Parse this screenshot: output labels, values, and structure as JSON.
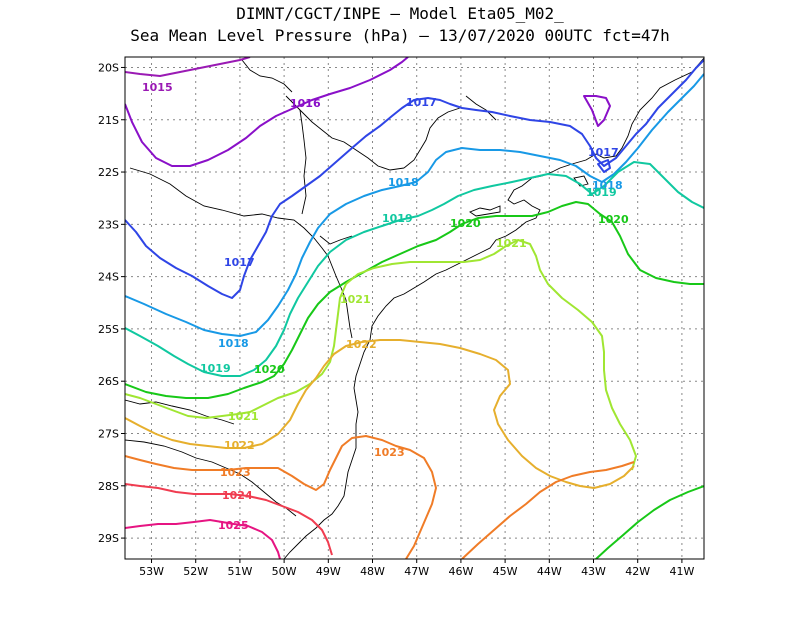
{
  "header": {
    "line1": "DIMNT/CGCT/INPE –  Model Eta05_M02_",
    "line2": "Sea Mean Level Pressure (hPa) – 13/07/2020 00UTC fct=47h"
  },
  "axes": {
    "lat_ticks": [
      "20S",
      "21S",
      "22S",
      "23S",
      "24S",
      "25S",
      "26S",
      "27S",
      "28S",
      "29S"
    ],
    "lon_ticks": [
      "53W",
      "52W",
      "51W",
      "50W",
      "49W",
      "48W",
      "47W",
      "46W",
      "45W",
      "44W",
      "43W",
      "42W",
      "41W"
    ]
  },
  "chart_data": {
    "type": "contour_map",
    "variable": "Sea Mean Level Pressure (hPa)",
    "xlim": [
      -53.6,
      -40.5
    ],
    "ylim": [
      -29.4,
      -19.8
    ],
    "x_ticks": [
      -53,
      -52,
      -51,
      -50,
      -49,
      -48,
      -47,
      -46,
      -45,
      -44,
      -43,
      -42,
      -41
    ],
    "y_ticks": [
      -20,
      -21,
      -22,
      -23,
      -24,
      -25,
      -26,
      -27,
      -28,
      -29
    ],
    "grid": true,
    "isobars": [
      {
        "value": "1015",
        "color": "#9a1ab4"
      },
      {
        "value": "1016",
        "color": "#8a10c8"
      },
      {
        "value": "1017",
        "color": "#2f45e6"
      },
      {
        "value": "1018",
        "color": "#1899e6"
      },
      {
        "value": "1019",
        "color": "#10c8a0"
      },
      {
        "value": "1020",
        "color": "#18c818"
      },
      {
        "value": "1021",
        "color": "#a0e632"
      },
      {
        "value": "1022",
        "color": "#e6af2d"
      },
      {
        "value": "1023",
        "color": "#f07c27"
      },
      {
        "value": "1024",
        "color": "#f03c50"
      },
      {
        "value": "1025",
        "color": "#e61482"
      }
    ]
  }
}
